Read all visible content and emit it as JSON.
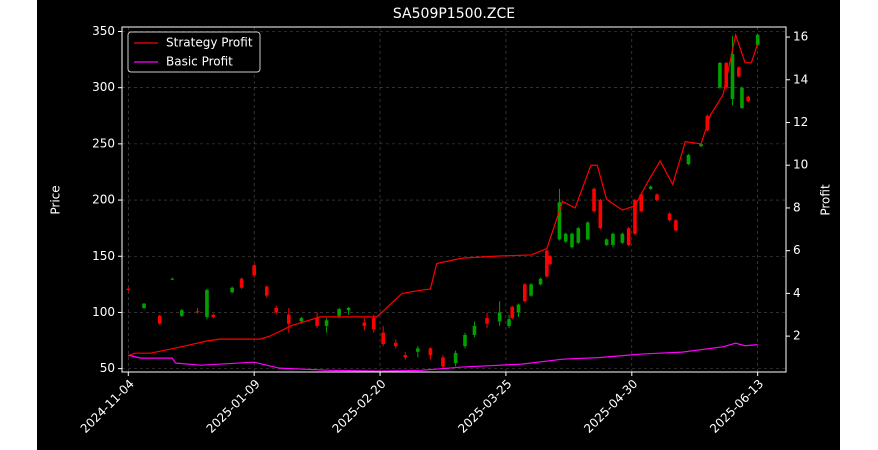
{
  "chart_data": {
    "type": "candlestick",
    "title": "SA509P1500.ZCE",
    "y_label": "Price",
    "y2_label": "Profit",
    "up_color": "#00a000",
    "down_color": "#ff0000",
    "x": [
      0,
      5,
      10,
      14,
      17,
      22,
      25,
      27,
      33,
      36,
      40,
      44,
      47,
      51,
      55,
      60,
      63,
      67,
      70,
      75,
      78,
      81,
      85,
      88,
      92,
      96,
      100,
      104,
      107,
      110,
      114,
      118,
      121,
      122,
      124,
      126,
      128,
      131,
      133,
      134,
      137,
      139,
      141,
      143,
      146,
      148,
      150,
      152,
      154,
      157,
      159,
      161,
      163,
      166,
      168,
      172,
      174,
      178,
      182,
      184,
      188,
      190,
      192,
      194,
      195,
      197,
      200
    ],
    "open": [
      121,
      104,
      97,
      130,
      97,
      101,
      96,
      98,
      118,
      130,
      142,
      123,
      104,
      98,
      92,
      95,
      88,
      97,
      102,
      91,
      95,
      82,
      73,
      62,
      65,
      68,
      60,
      55,
      70,
      80,
      95,
      92,
      88,
      105,
      100,
      125,
      115,
      125,
      155,
      150,
      165,
      163,
      158,
      162,
      165,
      210,
      200,
      160,
      160,
      162,
      175,
      200,
      205,
      210,
      205,
      188,
      182,
      232,
      248,
      275,
      300,
      322,
      290,
      318,
      282,
      292,
      338
    ],
    "high": [
      122,
      108,
      98,
      131,
      103,
      104,
      121,
      99,
      123,
      131,
      143,
      124,
      106,
      104,
      96,
      100,
      95,
      104,
      105,
      95,
      98,
      88,
      76,
      65,
      70,
      69,
      62,
      66,
      82,
      92,
      100,
      110,
      98,
      106,
      108,
      126,
      126,
      131,
      156,
      151,
      210,
      171,
      171,
      176,
      181,
      211,
      201,
      166,
      171,
      171,
      176,
      201,
      206,
      213,
      206,
      189,
      183,
      241,
      251,
      276,
      323,
      323,
      346,
      319,
      301,
      293,
      348
    ],
    "low": [
      119,
      103,
      89,
      129,
      96,
      99,
      94,
      95,
      117,
      121,
      131,
      113,
      98,
      82,
      90,
      86,
      82,
      95,
      98,
      84,
      82,
      70,
      68,
      58,
      60,
      58,
      50,
      52,
      68,
      78,
      86,
      88,
      86,
      94,
      96,
      109,
      114,
      124,
      131,
      142,
      164,
      162,
      157,
      161,
      164,
      189,
      174,
      159,
      158,
      161,
      159,
      169,
      189,
      209,
      199,
      181,
      172,
      231,
      247,
      261,
      299,
      299,
      284,
      309,
      281,
      287,
      337
    ],
    "close": [
      120,
      108,
      90,
      130,
      102,
      100,
      120,
      96,
      122,
      122,
      133,
      115,
      100,
      90,
      95,
      88,
      93,
      103,
      104,
      88,
      85,
      72,
      70,
      60,
      68,
      62,
      52,
      64,
      80,
      88,
      90,
      100,
      94,
      95,
      107,
      110,
      125,
      130,
      132,
      143,
      198,
      170,
      170,
      175,
      180,
      190,
      175,
      165,
      170,
      170,
      160,
      170,
      190,
      212,
      200,
      182,
      173,
      240,
      250,
      262,
      322,
      300,
      330,
      310,
      300,
      288,
      347
    ],
    "series": [
      {
        "name": "Strategy Profit",
        "color": "#ff0000",
        "axis": "y2",
        "x": [
          0,
          2,
          7,
          15,
          25,
          29,
          42,
          45,
          52,
          61,
          79,
          87,
          93,
          96,
          98,
          106,
          118,
          128,
          133,
          138,
          142,
          147,
          149,
          152,
          157,
          161,
          165,
          169,
          173,
          177,
          182,
          185,
          189,
          193,
          196,
          198,
          200
        ],
        "values": [
          1.06,
          1.2,
          1.2,
          1.44,
          1.77,
          1.86,
          1.86,
          2.0,
          2.5,
          2.9,
          2.9,
          4.0,
          4.15,
          4.2,
          5.4,
          5.65,
          5.75,
          5.8,
          6.1,
          8.3,
          8.0,
          10.0,
          10.0,
          8.4,
          7.9,
          8.1,
          9.2,
          10.2,
          9.1,
          11.1,
          11.0,
          12.35,
          13.3,
          16.1,
          14.8,
          14.8,
          15.7
        ]
      },
      {
        "name": "Basic Profit",
        "color": "#ff00ff",
        "axis": "y2",
        "x": [
          0,
          4,
          14,
          15,
          23,
          40,
          48,
          64,
          80,
          93,
          106,
          125,
          138,
          150,
          163,
          176,
          189,
          193,
          196,
          200
        ],
        "values": [
          1.11,
          0.97,
          0.97,
          0.74,
          0.64,
          0.78,
          0.5,
          0.4,
          0.36,
          0.4,
          0.55,
          0.69,
          0.92,
          1.0,
          1.16,
          1.25,
          1.5,
          1.67,
          1.55,
          1.6
        ]
      }
    ],
    "xlim": [
      -2,
      209
    ],
    "xticks": [
      {
        "value": 0,
        "label": "2024-11-04"
      },
      {
        "value": 40,
        "label": "2025-01-09"
      },
      {
        "value": 80,
        "label": "2025-02-20"
      },
      {
        "value": 120,
        "label": "2025-03-25"
      },
      {
        "value": 160,
        "label": "2025-04-30"
      },
      {
        "value": 200,
        "label": "2025-06-13"
      }
    ],
    "ylim": [
      47,
      354
    ],
    "yticks": [
      50,
      100,
      150,
      200,
      250,
      300,
      350
    ],
    "y2lim": [
      0.32,
      16.47
    ],
    "y2ticks": [
      2,
      4,
      6,
      8,
      10,
      12,
      14,
      16
    ],
    "grid": true,
    "legend": "upper left"
  }
}
